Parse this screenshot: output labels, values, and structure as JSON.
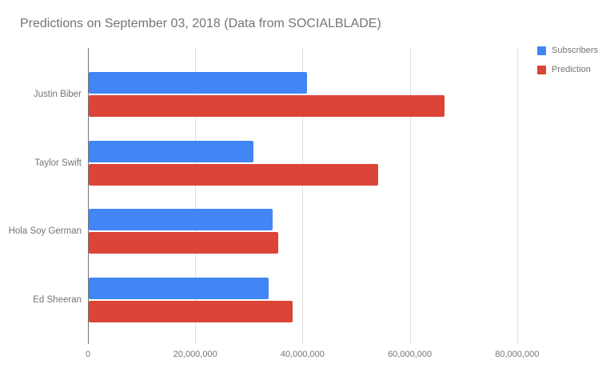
{
  "title": "Predictions on September 03, 2018 (Data from SOCIALBLADE)",
  "colors": {
    "subscribers": "#4285F4",
    "prediction": "#DB4437",
    "title_text": "#757575",
    "axis_text": "#757575",
    "gridline": "#E0E0E0",
    "axis_line": "#757575",
    "background": "#FFFFFF"
  },
  "legend": {
    "position": "right",
    "items": [
      {
        "label": "Subscribers",
        "color": "#4285F4"
      },
      {
        "label": "Prediction",
        "color": "#DB4437"
      }
    ]
  },
  "chart_data": {
    "type": "bar",
    "orientation": "horizontal",
    "title": "Predictions on September 03, 2018 (Data from SOCIALBLADE)",
    "categories": [
      "Justin Biber",
      "Taylor Swift",
      "Hola Soy German",
      "Ed Sheeran"
    ],
    "series": [
      {
        "name": "Subscribers",
        "color": "#4285F4",
        "values": [
          40800000,
          30900000,
          34400000,
          33700000
        ]
      },
      {
        "name": "Prediction",
        "color": "#DB4437",
        "values": [
          66400000,
          54100000,
          35400000,
          38200000
        ]
      }
    ],
    "x_axis": {
      "ticks": [
        0,
        20000000,
        40000000,
        60000000,
        80000000
      ],
      "tick_labels": [
        "0",
        "20,000,000",
        "40,000,000",
        "60,000,000",
        "80,000,000"
      ],
      "min": 0,
      "max": 81340000
    },
    "ylabel": "",
    "xlabel": "",
    "grid": true,
    "legend_position": "right"
  }
}
